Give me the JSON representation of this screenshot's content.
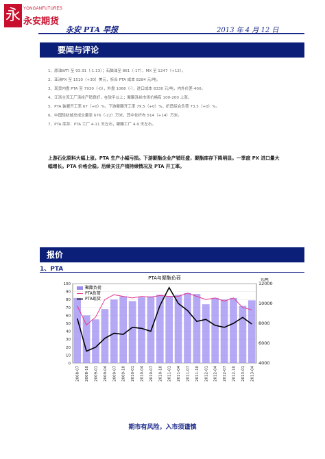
{
  "logo": {
    "mark": "永",
    "en": "YONGANFUTURES",
    "cn": "永安期货"
  },
  "header": {
    "title": "永安 PTA 早报",
    "date": "2013 年 4 月 12 日"
  },
  "sections": {
    "news_title": "要闻与评论",
    "price_title": "报价",
    "pta_subtitle": "1、PTA"
  },
  "news": [
    "1、原油WTI 至 93.31（-1.13）；石脑油至 861（-17），MX 至 1247（+12）。",
    "2、亚洲PX 至 1510（+30）美元，折合 PTA 成本 8284 元/吨。",
    "3、现货内盘 PTA 至 7930（-0），外盘 1066（-），进口成本 8330 元/吨，内外价差-400。",
    "4、江浙主流工厂涤纶产销良好，在较平以上；聚酯涤丝市场价格有 100-200 上涨。",
    "5、PTA 装置开工率 67（+0）%，下游聚酯开工率 79.5（+0）%，织造综合负荷 73.5（+0）%。",
    "6、中国轻纺城总成交量至 676（-22）万米，其中化纤布 514（+14）万米。",
    "7、PTA 库存：PTA 工厂 4-11 天左右，聚酯工厂 4-9 天左右。"
  ],
  "summary": "上游石化原料大幅上涨，PTA 生产小幅亏损。下游聚酯企业产销旺盛，聚酯库存下降明显。一季度 PX 进口量大幅增长。PTA 价格企稳，后续关注产销持续情况及 PTA 开工率。",
  "chart_data": {
    "type": "line",
    "title": "PTA与聚酯负荷",
    "x": [
      "2008-07",
      "2008-10",
      "2009-01",
      "2009-04",
      "2009-07",
      "2009-10",
      "2010-01",
      "2010-04",
      "2010-07",
      "2010-10",
      "2011-01",
      "2011-04",
      "2011-07",
      "2011-10",
      "2012-01",
      "2012-04",
      "2012-07",
      "2012-10",
      "2013-01",
      "2013-04"
    ],
    "y_left": {
      "range": [
        0,
        100
      ],
      "ticks": [
        "0",
        "10",
        "20",
        "30",
        "40",
        "50",
        "60",
        "70",
        "80",
        "90",
        "100"
      ]
    },
    "y_right": {
      "label": "元/吨",
      "range": [
        4000,
        12000
      ],
      "ticks": [
        "4000",
        "6000",
        "8000",
        "10000",
        "12000"
      ]
    },
    "series": [
      {
        "name": "聚酯负荷",
        "axis": "left",
        "kind": "bar",
        "color": "#9c8cf2",
        "values": [
          82,
          60,
          55,
          68,
          80,
          84,
          78,
          83,
          84,
          86,
          84,
          86,
          88,
          87,
          74,
          82,
          80,
          82,
          72,
          79
        ]
      },
      {
        "name": "PTA负荷",
        "axis": "left",
        "kind": "line",
        "color": "#e8348a",
        "values": [
          72,
          48,
          58,
          80,
          86,
          84,
          82,
          84,
          83,
          85,
          84,
          84,
          88,
          84,
          80,
          82,
          78,
          82,
          70,
          67
        ]
      },
      {
        "name": "PTA现货",
        "axis": "right",
        "kind": "line",
        "color": "#000000",
        "values": [
          8500,
          5200,
          5600,
          6500,
          7000,
          6900,
          7600,
          7500,
          7200,
          9800,
          11600,
          10000,
          9300,
          8200,
          8400,
          7800,
          7600,
          8000,
          8600,
          7930
        ]
      }
    ],
    "legend_position": "top-left"
  },
  "footer": "期市有风险，入市须谨慎"
}
